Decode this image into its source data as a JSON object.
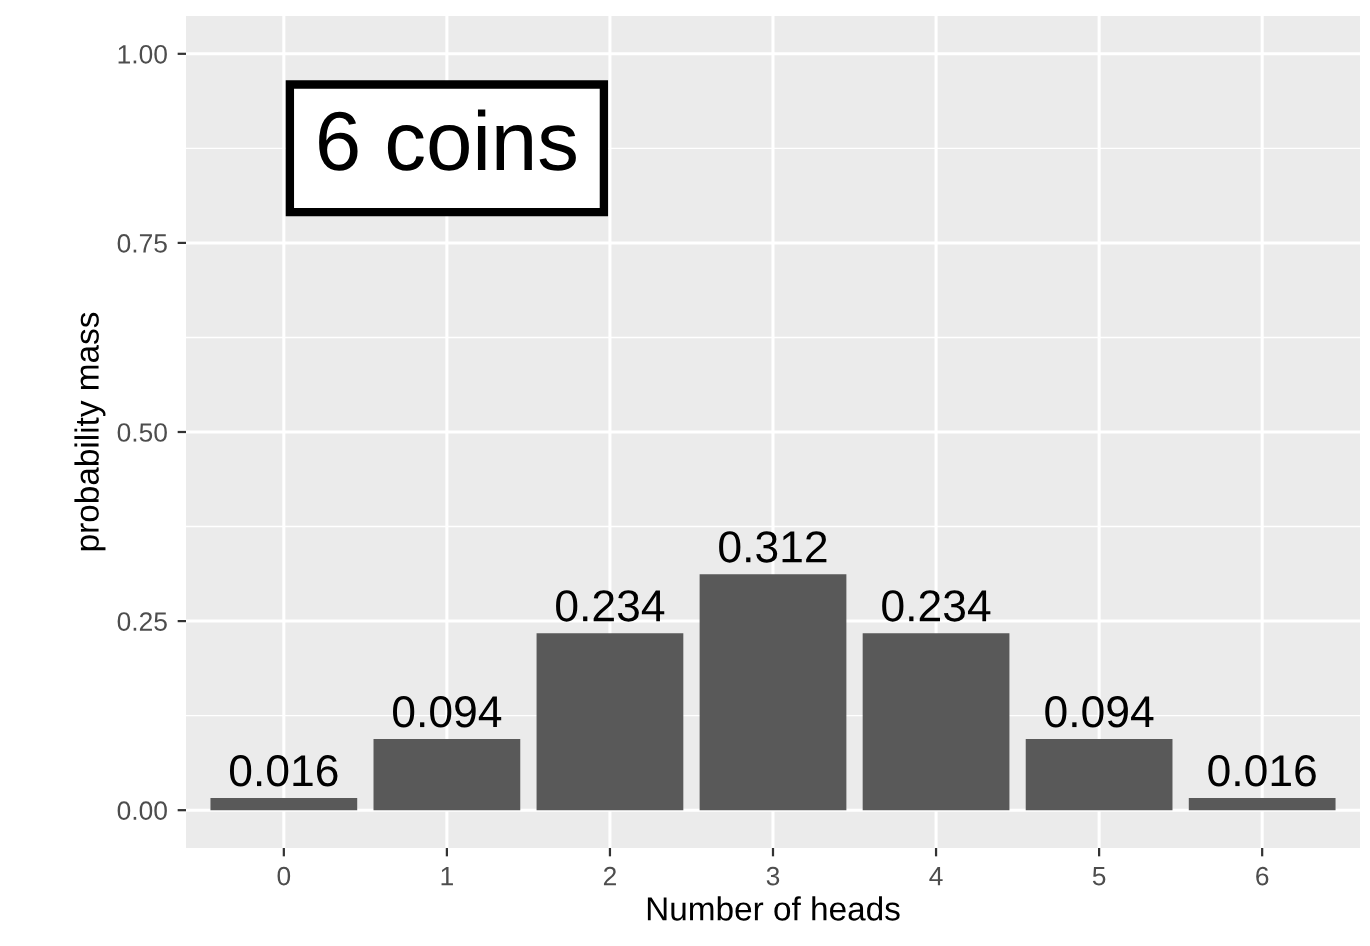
{
  "chart_data": {
    "type": "bar",
    "categories": [
      "0",
      "1",
      "2",
      "3",
      "4",
      "5",
      "6"
    ],
    "values": [
      0.016,
      0.094,
      0.234,
      0.312,
      0.234,
      0.094,
      0.016
    ],
    "color": "#595959",
    "xlabel": "Number of heads",
    "ylabel": "probability mass",
    "ylim": [
      -0.05,
      1.05
    ],
    "yticks": [
      "0.00",
      "0.25",
      "0.50",
      "0.75",
      "1.00"
    ],
    "annotations": [
      "6 coins"
    ],
    "data_labels": true,
    "grid": true
  }
}
